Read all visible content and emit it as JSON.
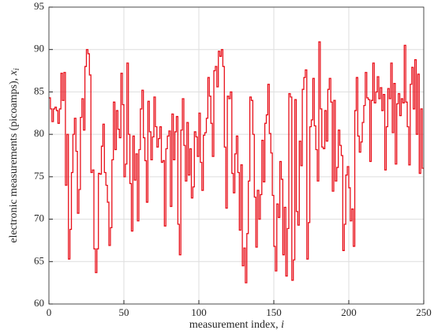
{
  "chart_data": {
    "type": "step",
    "xlabel": {
      "text": "measurement index, ",
      "var": "i"
    },
    "ylabel": {
      "text": "electronic measurements (picoamps), ",
      "var": "x",
      "sub": "i"
    },
    "xlim": [
      0,
      250
    ],
    "xticks": [
      0,
      50,
      100,
      150,
      200,
      250
    ],
    "ylim": [
      60,
      95
    ],
    "yticks": [
      60,
      65,
      70,
      75,
      80,
      85,
      90,
      95
    ],
    "grid": true,
    "series": [
      {
        "color": "#e8101a",
        "values": [
          84.3,
          83,
          81.5,
          83,
          83.2,
          82.8,
          81.3,
          83,
          87.2,
          84,
          87.3,
          74,
          80,
          65.3,
          68.8,
          75.5,
          80,
          81.9,
          78,
          70.7,
          73.5,
          82,
          84.2,
          80.5,
          88,
          90,
          89.5,
          87,
          75.5,
          75.8,
          66.5,
          63.7,
          66.5,
          75.4,
          75.3,
          78.6,
          81.2,
          75.5,
          74,
          72,
          66.9,
          69,
          77,
          83.8,
          78.2,
          82.8,
          80.6,
          79.6,
          87.2,
          83.5,
          75,
          76.5,
          88.4,
          80,
          74.2,
          68.6,
          79.8,
          74.6,
          77.7,
          69.8,
          78.2,
          83,
          85.2,
          79.6,
          76.9,
          72,
          83.9,
          80.3,
          77,
          79.7,
          84.4,
          80.9,
          78.5,
          79.5,
          80.9,
          76.7,
          76.9,
          69.2,
          78.3,
          79.8,
          80.4,
          71.5,
          82.4,
          77,
          80.3,
          82.1,
          69.4,
          65.8,
          80.5,
          84.2,
          78.7,
          74.5,
          81.4,
          75.2,
          78.3,
          72.5,
          73.8,
          80.3,
          79.7,
          77.4,
          82.5,
          76.7,
          73.4,
          79.9,
          80.2,
          81.9,
          86.7,
          84.5,
          81.3,
          77.4,
          87.5,
          88,
          85.6,
          89.8,
          89.2,
          90,
          88,
          78.5,
          71.3,
          84.5,
          84.2,
          85,
          75.4,
          73.1,
          77.7,
          79.8,
          75.5,
          68.7,
          76.4,
          64.5,
          66.6,
          62.5,
          68.3,
          74.5,
          84.4,
          84,
          80,
          72.6,
          66.7,
          73.4,
          70,
          72.9,
          79.3,
          74.4,
          81.3,
          82.3,
          85.9,
          80.1,
          77.8,
          72.8,
          66.8,
          63.9,
          71.8,
          70.2,
          76.8,
          74.7,
          65.8,
          71.4,
          63.3,
          68.9,
          84.8,
          84.4,
          62.8,
          65.2,
          84.1,
          70.9,
          69.3,
          79.2,
          76.3,
          85.3,
          86.7,
          87.6,
          65.3,
          69.6,
          80.9,
          81.7,
          86.6,
          81,
          78.2,
          74.5,
          90.9,
          83,
          78.5,
          78.3,
          82.8,
          79.2,
          85.3,
          86.6,
          83.8,
          73.3,
          84,
          74.5,
          76.1,
          80.5,
          78.7,
          77.5,
          66.3,
          69.4,
          75.2,
          76.2,
          73.7,
          69.8,
          71.2,
          66.8,
          82.8,
          86.7,
          79.8,
          77.9,
          79.1,
          81.4,
          83.4,
          87.3,
          84.3,
          84.1,
          76.8,
          84,
          88.4,
          83.7,
          85,
          86.8,
          84.2,
          85.5,
          82.8,
          84.7,
          75.8,
          80.9,
          85.4,
          84.2,
          88.4,
          80.2,
          86,
          76.5,
          83.6,
          84.8,
          82.2,
          84.2,
          83.7,
          90.5,
          83.8,
          80.9,
          76.4,
          85.9,
          87.9,
          83,
          88.8,
          80,
          87.1,
          75.4,
          83,
          76
        ]
      }
    ]
  }
}
